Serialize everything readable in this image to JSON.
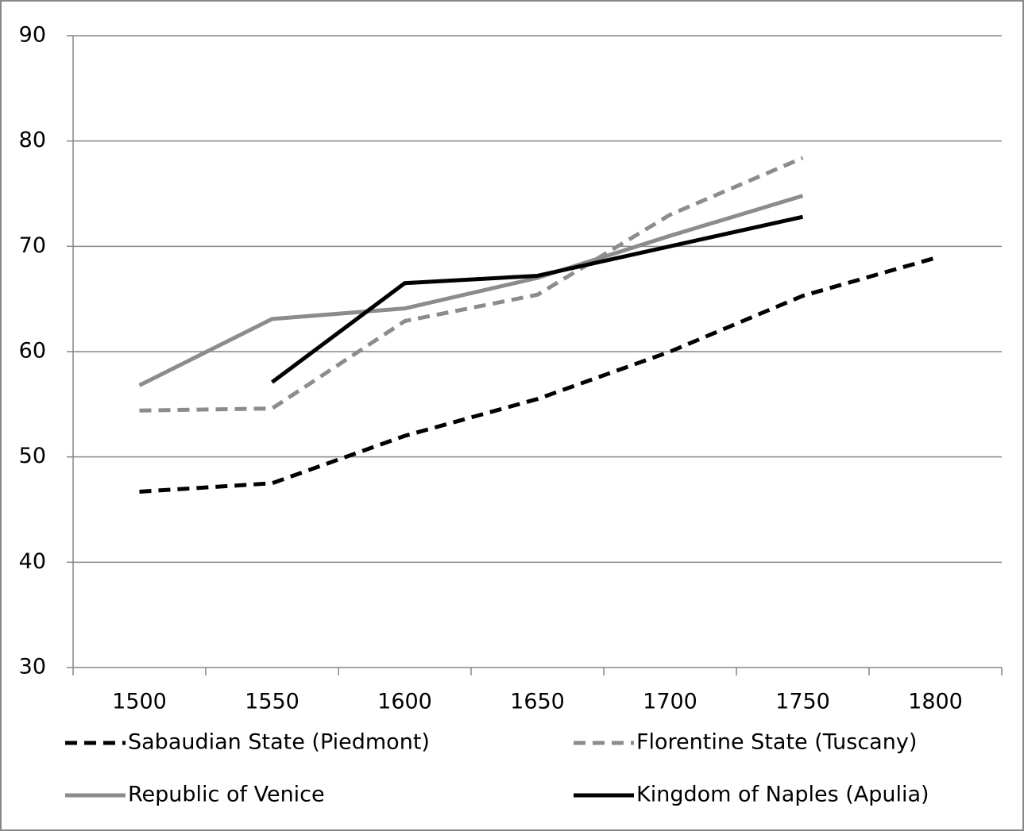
{
  "chart_data": {
    "type": "line",
    "categories": [
      "1500",
      "1550",
      "1600",
      "1650",
      "1700",
      "1750",
      "1800"
    ],
    "series": [
      {
        "name": "Sabaudian State (Piedmont)",
        "color": "#000000",
        "dashed": true,
        "values": [
          46.7,
          47.5,
          52,
          55.5,
          60,
          65.3,
          68.9
        ]
      },
      {
        "name": "Florentine State (Tuscany)",
        "color": "#8c8c8c",
        "dashed": true,
        "values": [
          54.4,
          54.6,
          62.9,
          65.4,
          73,
          78.4,
          null
        ]
      },
      {
        "name": "Republic of Venice",
        "color": "#8c8c8c",
        "dashed": false,
        "values": [
          56.8,
          63.1,
          64.1,
          67,
          71,
          74.8,
          null
        ]
      },
      {
        "name": "Kingdom of Naples (Apulia)",
        "color": "#000000",
        "dashed": false,
        "values": [
          null,
          57.1,
          66.5,
          67.2,
          70,
          72.8,
          null
        ]
      }
    ],
    "ylim": [
      30,
      90
    ],
    "yticks": [
      30,
      40,
      50,
      60,
      70,
      80,
      90
    ],
    "grid": true,
    "legend": "bottom"
  }
}
